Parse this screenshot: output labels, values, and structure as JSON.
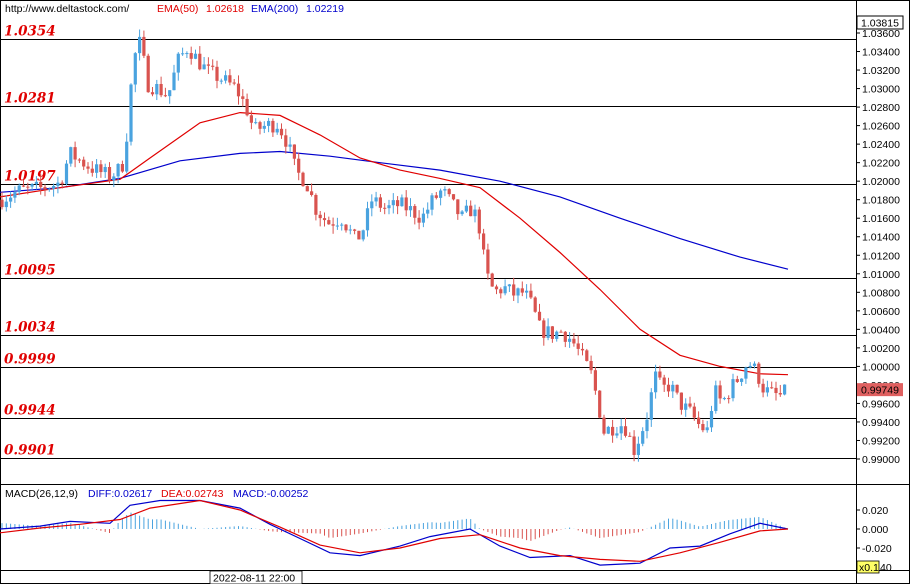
{
  "header": {
    "url": "http://www.deltastock.com/",
    "ema50_label": "EMA(50)",
    "ema50_value": "1.02618",
    "ema200_label": "EMA(200)",
    "ema200_value": "1.02219"
  },
  "macd_header": {
    "title": "MACD(26,12,9)",
    "diff": "DIFF:0.02617",
    "dea": "DEA:0.02743",
    "macd": "MACD:-0.00252"
  },
  "time_label": "2022-08-11 22:00",
  "zoom_label": "x0.1",
  "colors": {
    "ema50": "#e00000",
    "ema200": "#0000cc",
    "bull": "#4aa3df",
    "bear": "#d9534f",
    "level_text": "#e00000",
    "current_price_bg": "#e06060"
  },
  "chart_data": [
    {
      "type": "candlestick",
      "ylim": [
        0.9888,
        1.0388
      ],
      "y_ticks": [
        "1.03600",
        "1.03400",
        "1.03200",
        "1.03000",
        "1.02800",
        "1.02600",
        "1.02400",
        "1.02200",
        "1.02000",
        "1.01800",
        "1.01600",
        "1.01400",
        "1.01200",
        "1.01000",
        "1.00800",
        "1.00600",
        "1.00400",
        "1.00200",
        "1.00000",
        "0.99800",
        "0.99600",
        "0.99400",
        "0.99200",
        "0.99000"
      ],
      "top_tick_label": "1.03815",
      "current_price_label": "0.99749",
      "levels": [
        {
          "label": "1.0354",
          "value": 1.0354
        },
        {
          "label": "1.0281",
          "value": 1.0281
        },
        {
          "label": "1.0197",
          "value": 1.0197
        },
        {
          "label": "1.0095",
          "value": 1.0095
        },
        {
          "label": "1.0034",
          "value": 1.0034
        },
        {
          "label": "0.9999",
          "value": 0.9999
        },
        {
          "label": "0.9944",
          "value": 0.9944
        },
        {
          "label": "0.9901",
          "value": 0.9901
        }
      ],
      "ema200_anchors": [
        [
          0,
          1.0188
        ],
        [
          60,
          1.0193
        ],
        [
          120,
          1.0203
        ],
        [
          180,
          1.0222
        ],
        [
          240,
          1.023
        ],
        [
          280,
          1.0232
        ],
        [
          330,
          1.0227
        ],
        [
          380,
          1.022
        ],
        [
          440,
          1.0212
        ],
        [
          500,
          1.02
        ],
        [
          560,
          1.0183
        ],
        [
          620,
          1.016
        ],
        [
          680,
          1.0138
        ],
        [
          740,
          1.0118
        ],
        [
          788,
          1.0105
        ]
      ],
      "ema50_anchors": [
        [
          0,
          1.0183
        ],
        [
          60,
          1.0193
        ],
        [
          120,
          1.0202
        ],
        [
          150,
          1.0225
        ],
        [
          200,
          1.0263
        ],
        [
          240,
          1.0274
        ],
        [
          280,
          1.0271
        ],
        [
          320,
          1.025
        ],
        [
          360,
          1.0225
        ],
        [
          400,
          1.0212
        ],
        [
          440,
          1.0203
        ],
        [
          480,
          1.0193
        ],
        [
          520,
          1.016
        ],
        [
          560,
          1.0123
        ],
        [
          600,
          1.0083
        ],
        [
          640,
          1.004
        ],
        [
          680,
          1.0012
        ],
        [
          720,
          1.0
        ],
        [
          760,
          0.9992
        ],
        [
          788,
          0.9991
        ]
      ],
      "price_anchors": [
        [
          0,
          1.018
        ],
        [
          20,
          1.019
        ],
        [
          40,
          1.0192
        ],
        [
          60,
          1.0198
        ],
        [
          70,
          1.023
        ],
        [
          90,
          1.0215
        ],
        [
          110,
          1.0205
        ],
        [
          122,
          1.0215
        ],
        [
          128,
          1.026
        ],
        [
          133,
          1.033
        ],
        [
          140,
          1.035
        ],
        [
          148,
          1.0305
        ],
        [
          158,
          1.03
        ],
        [
          168,
          1.0292
        ],
        [
          178,
          1.033
        ],
        [
          188,
          1.0345
        ],
        [
          198,
          1.033
        ],
        [
          208,
          1.0318
        ],
        [
          222,
          1.031
        ],
        [
          236,
          1.03
        ],
        [
          246,
          1.028
        ],
        [
          254,
          1.0255
        ],
        [
          266,
          1.026
        ],
        [
          278,
          1.0262
        ],
        [
          288,
          1.024
        ],
        [
          296,
          1.021
        ],
        [
          306,
          1.02
        ],
        [
          316,
          1.017
        ],
        [
          328,
          1.0155
        ],
        [
          342,
          1.016
        ],
        [
          356,
          1.0135
        ],
        [
          364,
          1.015
        ],
        [
          372,
          1.018
        ],
        [
          386,
          1.017
        ],
        [
          400,
          1.0175
        ],
        [
          412,
          1.0168
        ],
        [
          422,
          1.016
        ],
        [
          432,
          1.0178
        ],
        [
          442,
          1.019
        ],
        [
          452,
          1.0175
        ],
        [
          462,
          1.016
        ],
        [
          470,
          1.017
        ],
        [
          478,
          1.016
        ],
        [
          486,
          1.01
        ],
        [
          494,
          1.008
        ],
        [
          504,
          1.0085
        ],
        [
          514,
          1.0078
        ],
        [
          524,
          1.008
        ],
        [
          532,
          1.0065
        ],
        [
          540,
          1.004
        ],
        [
          552,
          1.0035
        ],
        [
          562,
          1.0038
        ],
        [
          572,
          1.0028
        ],
        [
          582,
          1.001
        ],
        [
          592,
          0.999
        ],
        [
          598,
          0.996
        ],
        [
          604,
          0.993
        ],
        [
          614,
          0.9935
        ],
        [
          624,
          0.9938
        ],
        [
          634,
          0.991
        ],
        [
          640,
          0.9925
        ],
        [
          648,
          0.995
        ],
        [
          655,
          0.999
        ],
        [
          662,
          0.9975
        ],
        [
          670,
          0.998
        ],
        [
          680,
          0.996
        ],
        [
          690,
          0.995
        ],
        [
          700,
          0.9935
        ],
        [
          708,
          0.993
        ],
        [
          714,
          0.9975
        ],
        [
          722,
          0.996
        ],
        [
          730,
          0.9975
        ],
        [
          740,
          0.999
        ],
        [
          748,
          1.0005
        ],
        [
          756,
          0.9995
        ],
        [
          764,
          0.9975
        ],
        [
          772,
          0.997
        ],
        [
          780,
          0.9968
        ],
        [
          788,
          0.9974
        ]
      ]
    },
    {
      "type": "macd",
      "ylim": [
        -0.035,
        0.032
      ],
      "y_ticks": [
        "0.020",
        "0.000",
        "-0.020"
      ],
      "partial_bottom_tick": "40",
      "diff_anchors": [
        [
          0,
          0.0
        ],
        [
          40,
          0.003
        ],
        [
          70,
          0.008
        ],
        [
          110,
          0.006
        ],
        [
          130,
          0.025
        ],
        [
          160,
          0.03
        ],
        [
          200,
          0.03
        ],
        [
          240,
          0.022
        ],
        [
          270,
          0.005
        ],
        [
          300,
          -0.01
        ],
        [
          330,
          -0.025
        ],
        [
          360,
          -0.028
        ],
        [
          400,
          -0.018
        ],
        [
          430,
          -0.008
        ],
        [
          470,
          0.0
        ],
        [
          500,
          -0.018
        ],
        [
          530,
          -0.03
        ],
        [
          570,
          -0.028
        ],
        [
          600,
          -0.038
        ],
        [
          640,
          -0.036
        ],
        [
          670,
          -0.02
        ],
        [
          700,
          -0.018
        ],
        [
          730,
          -0.005
        ],
        [
          760,
          0.006
        ],
        [
          788,
          0.0
        ]
      ],
      "dea_anchors": [
        [
          0,
          -0.004
        ],
        [
          40,
          0.001
        ],
        [
          80,
          0.005
        ],
        [
          120,
          0.01
        ],
        [
          150,
          0.022
        ],
        [
          200,
          0.03
        ],
        [
          240,
          0.02
        ],
        [
          280,
          0.002
        ],
        [
          320,
          -0.017
        ],
        [
          360,
          -0.025
        ],
        [
          400,
          -0.02
        ],
        [
          440,
          -0.01
        ],
        [
          480,
          -0.006
        ],
        [
          520,
          -0.02
        ],
        [
          560,
          -0.028
        ],
        [
          600,
          -0.032
        ],
        [
          640,
          -0.034
        ],
        [
          680,
          -0.025
        ],
        [
          720,
          -0.014
        ],
        [
          760,
          -0.002
        ],
        [
          788,
          0.0
        ]
      ]
    }
  ]
}
